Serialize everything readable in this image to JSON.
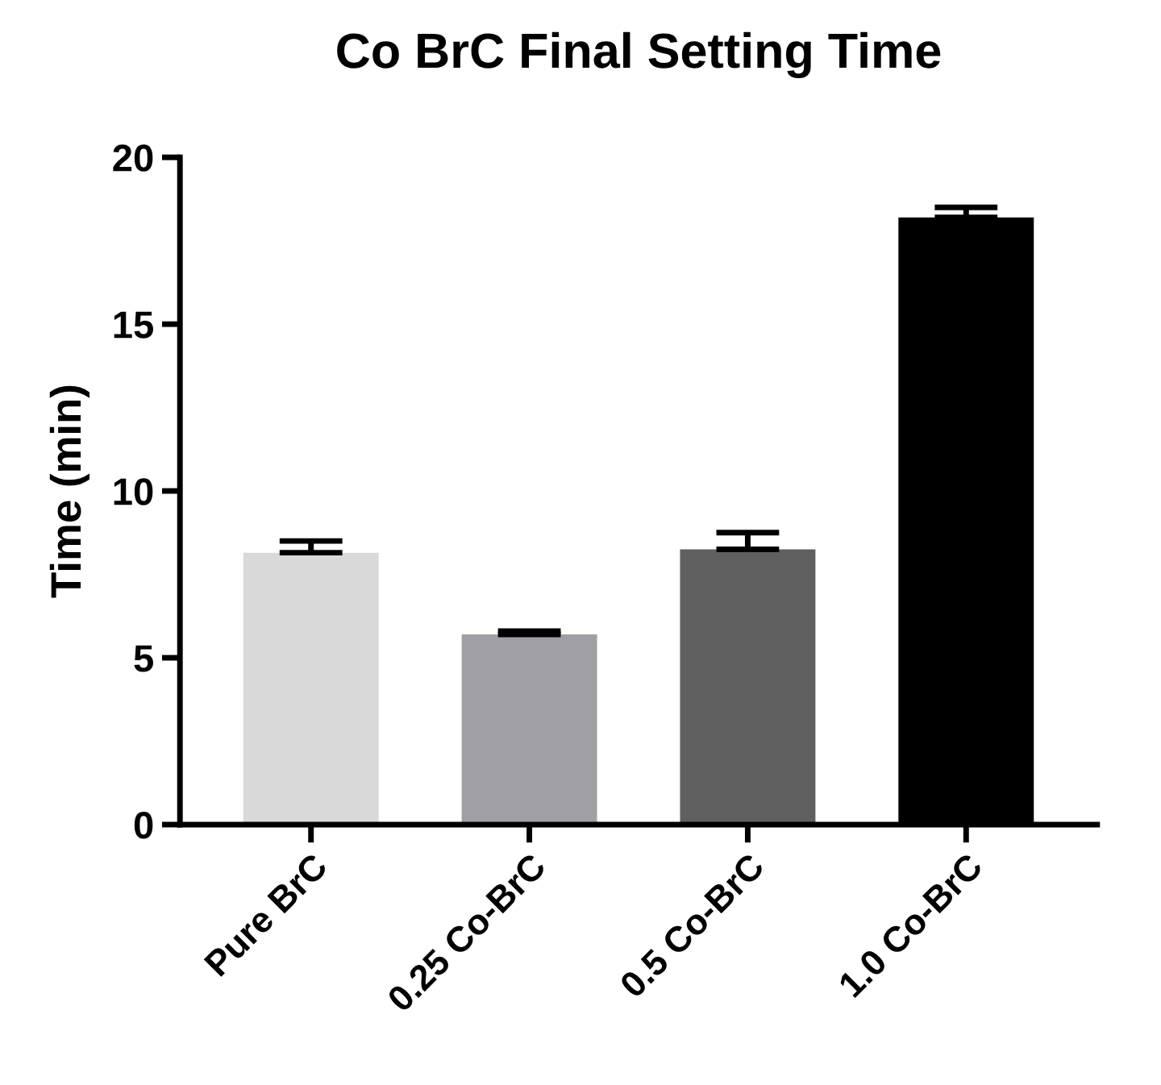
{
  "chart_data": {
    "type": "bar",
    "title": "Co BrC Final Setting Time",
    "ylabel": "Time (min)",
    "categories": [
      "Pure BrC",
      "0.25 Co-BrC",
      "0.5 Co-BrC",
      "1.0 Co-BrC"
    ],
    "values": [
      8.15,
      5.7,
      8.25,
      18.2
    ],
    "errors": [
      0.35,
      0.1,
      0.5,
      0.3
    ],
    "colors": [
      "#d9d9d9",
      "#a0a0a4",
      "#606060",
      "#000000"
    ],
    "ylim": [
      0,
      20
    ],
    "yticks": [
      0,
      5,
      10,
      15,
      20
    ],
    "grid": false,
    "legend": false
  }
}
